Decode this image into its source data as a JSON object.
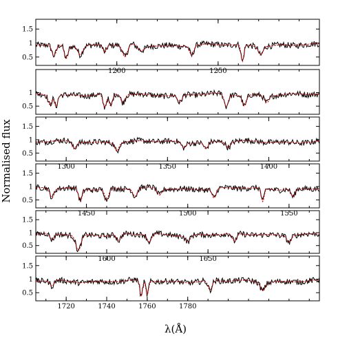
{
  "chart_data": {
    "type": "line",
    "ylabel": "Normalised flux",
    "xlabel": "λ(Å)",
    "line_colors": {
      "observed": "#000000",
      "model": "#cc0000",
      "dotted_model": "#3344cc"
    },
    "panels": [
      {
        "xlim": [
          1160,
          1300
        ],
        "ylim": [
          0.2,
          1.85
        ],
        "xticks": [
          1200,
          1250
        ],
        "xtick_labels": [
          "1200",
          "1250"
        ],
        "yticks": [
          0.5,
          1,
          1.5
        ],
        "ytick_labels": [
          "0.5",
          "1",
          "1.5"
        ],
        "features": [
          {
            "x": 1169,
            "depth": 0.4,
            "width": 1.5
          },
          {
            "x": 1175,
            "depth": 0.45,
            "width": 1.3
          },
          {
            "x": 1182,
            "depth": 0.3,
            "width": 1.5
          },
          {
            "x": 1194,
            "depth": 0.25,
            "width": 1.2
          },
          {
            "x": 1204,
            "depth": 0.45,
            "width": 1.8
          },
          {
            "x": 1212,
            "depth": 0.2,
            "width": 2.5
          },
          {
            "x": 1237,
            "depth": 0.35,
            "width": 1.3
          },
          {
            "x": 1262,
            "depth": 0.6,
            "width": 1.0
          },
          {
            "x": 1271,
            "depth": 0.3,
            "width": 1.5
          }
        ]
      },
      {
        "xlim": [
          1300,
          1440
        ],
        "ylim": [
          0.2,
          1.85
        ],
        "xticks": [],
        "xtick_labels": [],
        "yticks": [
          0.5,
          1
        ],
        "ytick_labels": [
          "0.5",
          "1"
        ],
        "features": [
          {
            "x": 1307,
            "depth": 0.35,
            "width": 1.2
          },
          {
            "x": 1310,
            "depth": 0.4,
            "width": 1.1
          },
          {
            "x": 1334,
            "depth": 0.5,
            "width": 1.2
          },
          {
            "x": 1337,
            "depth": 0.45,
            "width": 1.2
          },
          {
            "x": 1343,
            "depth": 0.3,
            "width": 1.4
          },
          {
            "x": 1371,
            "depth": 0.3,
            "width": 1.5
          },
          {
            "x": 1394,
            "depth": 0.45,
            "width": 1.4
          },
          {
            "x": 1403,
            "depth": 0.4,
            "width": 1.4
          },
          {
            "x": 1414,
            "depth": 0.25,
            "width": 1.6
          }
        ]
      },
      {
        "xlim": [
          1285,
          1425
        ],
        "ylim": [
          0.2,
          1.85
        ],
        "xticks": [
          1300,
          1350,
          1400
        ],
        "xtick_labels": [
          "1300",
          "1350",
          "1400"
        ],
        "yticks": [
          0.5,
          1,
          1.5
        ],
        "ytick_labels": [
          "0.5",
          "1",
          "1.5"
        ],
        "features": [
          {
            "x": 1304,
            "depth": 0.25,
            "width": 1.4
          },
          {
            "x": 1325,
            "depth": 0.3,
            "width": 1.4
          },
          {
            "x": 1358,
            "depth": 0.2,
            "width": 1.5
          },
          {
            "x": 1369,
            "depth": 0.25,
            "width": 1.5
          },
          {
            "x": 1380,
            "depth": 0.2,
            "width": 1.6
          }
        ]
      },
      {
        "xlim": [
          1425,
          1565
        ],
        "ylim": [
          0.2,
          1.85
        ],
        "xticks": [
          1450,
          1500,
          1550
        ],
        "xtick_labels": [
          "1450",
          "1500",
          "1550"
        ],
        "yticks": [
          0.5,
          1,
          1.5
        ],
        "ytick_labels": [
          "0.5",
          "1",
          "1.5"
        ],
        "features": [
          {
            "x": 1433,
            "depth": 0.35,
            "width": 1.4
          },
          {
            "x": 1447,
            "depth": 0.45,
            "width": 1.3
          },
          {
            "x": 1460,
            "depth": 0.4,
            "width": 1.4
          },
          {
            "x": 1474,
            "depth": 0.3,
            "width": 1.5
          },
          {
            "x": 1486,
            "depth": 0.25,
            "width": 1.5
          },
          {
            "x": 1513,
            "depth": 0.35,
            "width": 1.4
          },
          {
            "x": 1537,
            "depth": 0.5,
            "width": 1.0
          },
          {
            "x": 1552,
            "depth": 0.3,
            "width": 1.4
          }
        ]
      },
      {
        "xlim": [
          1565,
          1705
        ],
        "ylim": [
          0.2,
          1.85
        ],
        "xticks": [
          1600,
          1650
        ],
        "xtick_labels": [
          "1600",
          "1650"
        ],
        "yticks": [
          0.5,
          1,
          1.5
        ],
        "ytick_labels": [
          "0.5",
          "1",
          "1.5"
        ],
        "features": [
          {
            "x": 1573,
            "depth": 0.25,
            "width": 1.4
          },
          {
            "x": 1586,
            "depth": 0.6,
            "width": 1.8
          },
          {
            "x": 1606,
            "depth": 0.25,
            "width": 1.4
          },
          {
            "x": 1621,
            "depth": 0.3,
            "width": 1.5
          },
          {
            "x": 1640,
            "depth": 0.25,
            "width": 1.6
          },
          {
            "x": 1663,
            "depth": 0.3,
            "width": 1.5
          },
          {
            "x": 1690,
            "depth": 0.25,
            "width": 1.4
          }
        ]
      },
      {
        "xlim": [
          1705,
          1845
        ],
        "ylim": [
          0.2,
          1.85
        ],
        "xticks": [
          1720,
          1740,
          1760,
          1780
        ],
        "xtick_labels": [
          "1720",
          "1740",
          "1760",
          "1780"
        ],
        "yticks": [
          0.5,
          1,
          1.5
        ],
        "ytick_labels": [
          "0.5",
          "1",
          "1.5"
        ],
        "features": [
          {
            "x": 1713,
            "depth": 0.2,
            "width": 1.4
          },
          {
            "x": 1757,
            "depth": 0.6,
            "width": 0.9
          },
          {
            "x": 1760,
            "depth": 0.5,
            "width": 0.9
          },
          {
            "x": 1791,
            "depth": 0.35,
            "width": 1.4
          },
          {
            "x": 1817,
            "depth": 0.3,
            "width": 1.6
          }
        ]
      }
    ]
  },
  "xlabel": "λ(Å)",
  "ylabel": "Normalised flux"
}
